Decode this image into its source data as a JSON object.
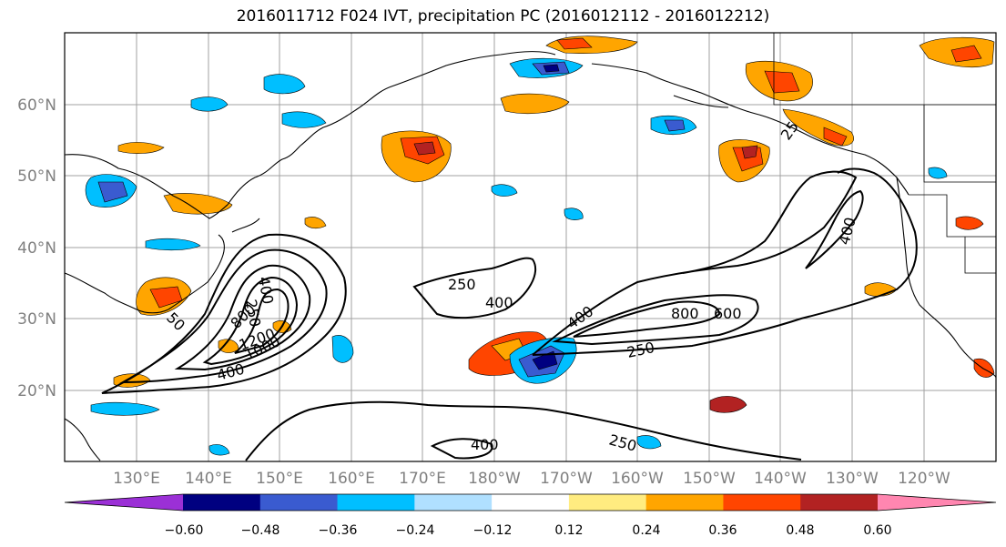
{
  "title": "2016011712 F024 IVT, precipitation PC (2016012112 - 2016012212)",
  "lat_labels": [
    "20°N",
    "30°N",
    "40°N",
    "50°N",
    "60°N"
  ],
  "lon_labels": [
    "130°E",
    "140°E",
    "150°E",
    "160°E",
    "170°E",
    "180°W",
    "170°W",
    "160°W",
    "150°W",
    "140°W",
    "130°W",
    "120°W"
  ],
  "colorbar": {
    "colors": [
      "#9b30d6",
      "#000080",
      "#3a5bd0",
      "#00bfff",
      "#b0e0ff",
      "#ffffff",
      "#ffec80",
      "#ffa500",
      "#ff4500",
      "#b22222",
      "#ff86b0"
    ],
    "ticks": [
      "−0.60",
      "−0.48",
      "−0.36",
      "−0.24",
      "−0.12",
      "0.12",
      "0.24",
      "0.36",
      "0.48",
      "0.60"
    ]
  },
  "contour_labels": [
    "250",
    "400",
    "250",
    "400",
    "800",
    "600",
    "250",
    "400",
    "400",
    "800",
    "1200",
    "1000",
    "400",
    "250",
    "400",
    "25",
    "50"
  ]
}
